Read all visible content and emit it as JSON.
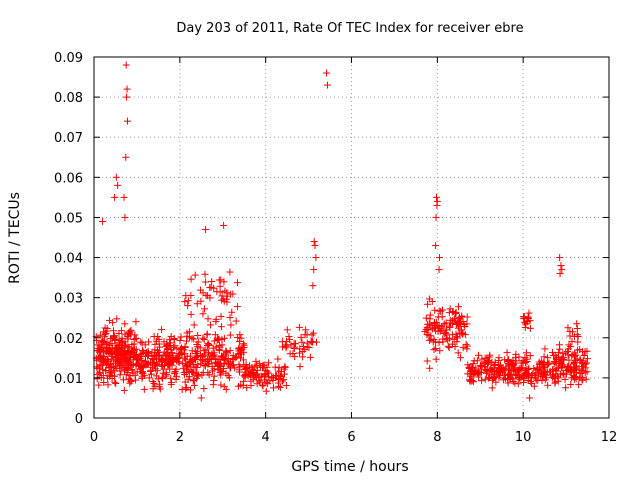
{
  "chart_data": {
    "type": "scatter",
    "title": "Day 203 of 2011, Rate Of TEC Index for receiver ebre",
    "xlabel": "GPS time / hours",
    "ylabel": "ROTI / TECUs",
    "xlim": [
      0,
      12
    ],
    "ylim": [
      0,
      0.09
    ],
    "xticks": [
      0,
      2,
      4,
      6,
      8,
      10,
      12
    ],
    "yticks": [
      0,
      0.01,
      0.02,
      0.03,
      0.04,
      0.05,
      0.06,
      0.07,
      0.08,
      0.09
    ],
    "ytick_labels": [
      "0",
      "0.01",
      "0.02",
      "0.03",
      "0.04",
      "0.05",
      "0.06",
      "0.07",
      "0.08",
      "0.09"
    ],
    "grid": true,
    "marker": "+",
    "marker_color": "#ff0000",
    "notable_points": [
      {
        "x": 0.75,
        "y": 0.088
      },
      {
        "x": 0.77,
        "y": 0.082
      },
      {
        "x": 0.76,
        "y": 0.08
      },
      {
        "x": 0.78,
        "y": 0.074
      },
      {
        "x": 0.74,
        "y": 0.065
      },
      {
        "x": 0.52,
        "y": 0.06
      },
      {
        "x": 0.55,
        "y": 0.058
      },
      {
        "x": 0.7,
        "y": 0.055
      },
      {
        "x": 0.48,
        "y": 0.055
      },
      {
        "x": 0.2,
        "y": 0.049
      },
      {
        "x": 0.72,
        "y": 0.05
      },
      {
        "x": 3.02,
        "y": 0.048
      },
      {
        "x": 2.6,
        "y": 0.047
      },
      {
        "x": 5.42,
        "y": 0.086
      },
      {
        "x": 5.44,
        "y": 0.083
      },
      {
        "x": 5.13,
        "y": 0.044
      },
      {
        "x": 5.15,
        "y": 0.043
      },
      {
        "x": 5.17,
        "y": 0.04
      },
      {
        "x": 5.12,
        "y": 0.037
      },
      {
        "x": 5.1,
        "y": 0.033
      },
      {
        "x": 7.98,
        "y": 0.055
      },
      {
        "x": 8.0,
        "y": 0.054
      },
      {
        "x": 7.99,
        "y": 0.053
      },
      {
        "x": 7.97,
        "y": 0.05
      },
      {
        "x": 7.96,
        "y": 0.043
      },
      {
        "x": 8.05,
        "y": 0.04
      },
      {
        "x": 8.04,
        "y": 0.037
      },
      {
        "x": 10.85,
        "y": 0.04
      },
      {
        "x": 10.88,
        "y": 0.038
      },
      {
        "x": 10.9,
        "y": 0.037
      },
      {
        "x": 10.86,
        "y": 0.036
      },
      {
        "x": 10.15,
        "y": 0.005
      },
      {
        "x": 2.5,
        "y": 0.005
      }
    ],
    "clusters": [
      {
        "x_range": [
          0.05,
          1.0
        ],
        "y_center": 0.016,
        "y_spread": 0.006,
        "count": 260
      },
      {
        "x_range": [
          1.0,
          2.0
        ],
        "y_center": 0.014,
        "y_spread": 0.005,
        "count": 180
      },
      {
        "x_range": [
          2.0,
          3.5
        ],
        "y_center": 0.015,
        "y_spread": 0.006,
        "count": 230
      },
      {
        "x_range": [
          2.1,
          3.4
        ],
        "y_center": 0.03,
        "y_spread": 0.005,
        "count": 50
      },
      {
        "x_range": [
          3.5,
          4.5
        ],
        "y_center": 0.011,
        "y_spread": 0.003,
        "count": 90
      },
      {
        "x_range": [
          4.3,
          5.2
        ],
        "y_center": 0.018,
        "y_spread": 0.004,
        "count": 40
      },
      {
        "x_range": [
          7.7,
          8.7
        ],
        "y_center": 0.022,
        "y_spread": 0.006,
        "count": 120
      },
      {
        "x_range": [
          8.7,
          9.6
        ],
        "y_center": 0.012,
        "y_spread": 0.003,
        "count": 110
      },
      {
        "x_range": [
          9.6,
          10.5
        ],
        "y_center": 0.012,
        "y_spread": 0.003,
        "count": 120
      },
      {
        "x_range": [
          10.5,
          11.5
        ],
        "y_center": 0.013,
        "y_spread": 0.004,
        "count": 140
      },
      {
        "x_range": [
          10.0,
          10.2
        ],
        "y_center": 0.024,
        "y_spread": 0.003,
        "count": 15
      },
      {
        "x_range": [
          11.0,
          11.3
        ],
        "y_center": 0.021,
        "y_spread": 0.003,
        "count": 12
      }
    ]
  }
}
